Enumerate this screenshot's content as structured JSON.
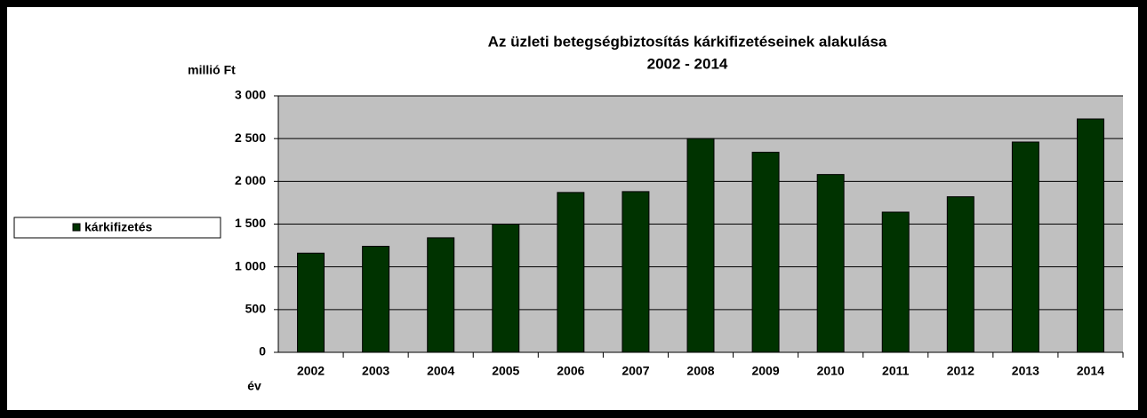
{
  "chart_data": {
    "type": "bar",
    "title": "Az üzleti betegségbiztosítás kárkifizetéseinek alakulása",
    "subtitle": "2002 - 2014",
    "y_label": "millió Ft",
    "x_label": "év",
    "categories": [
      "2002",
      "2003",
      "2004",
      "2005",
      "2006",
      "2007",
      "2008",
      "2009",
      "2010",
      "2011",
      "2012",
      "2013",
      "2014"
    ],
    "series": [
      {
        "name": "kárkifizetés",
        "color": "#003300",
        "values": [
          1160,
          1240,
          1340,
          1500,
          1870,
          1880,
          2500,
          2340,
          2080,
          1640,
          1820,
          2460,
          2730
        ]
      }
    ],
    "ylim": [
      0,
      3000
    ],
    "yticks": [
      0,
      500,
      {
        "value": 1000,
        "label": "1 000"
      },
      {
        "value": 1500,
        "label": "1 500"
      },
      {
        "value": 2000,
        "label": "2 000"
      },
      {
        "value": 2500,
        "label": "2 500"
      },
      {
        "value": 3000,
        "label": "3 000"
      }
    ],
    "grid": true,
    "legend": "left"
  }
}
